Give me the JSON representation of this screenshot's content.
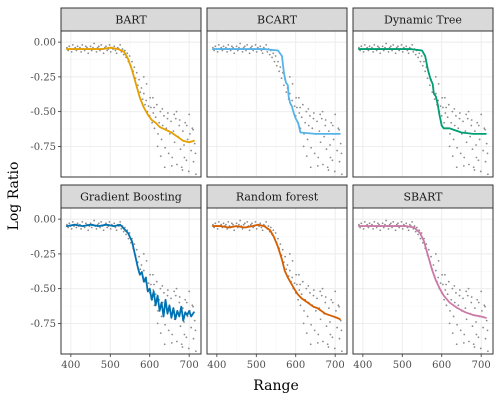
{
  "chart_data": {
    "type": "line",
    "xlabel": "Range",
    "ylabel": "Log Ratio",
    "xlim": [
      375,
      730
    ],
    "ylim": [
      -0.97,
      0.08
    ],
    "x_ticks": [
      400,
      500,
      600,
      700
    ],
    "x_tick_labels": [
      "400",
      "500",
      "600",
      "700"
    ],
    "y_ticks": [
      0.0,
      -0.25,
      -0.5,
      -0.75
    ],
    "y_tick_labels": [
      "0.00",
      "-0.25",
      "-0.50",
      "-0.75"
    ],
    "grid": true,
    "layout": "2 rows x 3 columns, faceted",
    "scatter_note": "same grey observed points shown in every panel",
    "panels": [
      {
        "label": "BART",
        "color": "#E69F00",
        "curve": [
          [
            390,
            -0.05
          ],
          [
            420,
            -0.05
          ],
          [
            450,
            -0.05
          ],
          [
            480,
            -0.05
          ],
          [
            500,
            -0.04
          ],
          [
            520,
            -0.05
          ],
          [
            535,
            -0.07
          ],
          [
            545,
            -0.12
          ],
          [
            555,
            -0.2
          ],
          [
            565,
            -0.3
          ],
          [
            575,
            -0.4
          ],
          [
            585,
            -0.47
          ],
          [
            595,
            -0.52
          ],
          [
            605,
            -0.56
          ],
          [
            615,
            -0.58
          ],
          [
            625,
            -0.61
          ],
          [
            640,
            -0.63
          ],
          [
            655,
            -0.65
          ],
          [
            670,
            -0.68
          ],
          [
            685,
            -0.71
          ],
          [
            700,
            -0.72
          ],
          [
            712,
            -0.71
          ]
        ]
      },
      {
        "label": "BCART",
        "color": "#56B4E9",
        "curve": [
          [
            390,
            -0.05
          ],
          [
            450,
            -0.05
          ],
          [
            520,
            -0.05
          ],
          [
            555,
            -0.06
          ],
          [
            565,
            -0.1
          ],
          [
            570,
            -0.22
          ],
          [
            575,
            -0.29
          ],
          [
            580,
            -0.31
          ],
          [
            582,
            -0.39
          ],
          [
            586,
            -0.44
          ],
          [
            590,
            -0.46
          ],
          [
            595,
            -0.51
          ],
          [
            600,
            -0.55
          ],
          [
            606,
            -0.58
          ],
          [
            612,
            -0.65
          ],
          [
            650,
            -0.66
          ],
          [
            712,
            -0.66
          ]
        ]
      },
      {
        "label": "Dynamic Tree",
        "color": "#009E73",
        "curve": [
          [
            390,
            -0.05
          ],
          [
            450,
            -0.05
          ],
          [
            520,
            -0.05
          ],
          [
            550,
            -0.06
          ],
          [
            558,
            -0.1
          ],
          [
            565,
            -0.2
          ],
          [
            572,
            -0.27
          ],
          [
            577,
            -0.3
          ],
          [
            580,
            -0.37
          ],
          [
            585,
            -0.39
          ],
          [
            590,
            -0.45
          ],
          [
            594,
            -0.52
          ],
          [
            600,
            -0.6
          ],
          [
            605,
            -0.62
          ],
          [
            620,
            -0.62
          ],
          [
            630,
            -0.63
          ],
          [
            650,
            -0.65
          ],
          [
            680,
            -0.66
          ],
          [
            712,
            -0.66
          ]
        ]
      },
      {
        "label": "Gradient Boosting",
        "color": "#0072B2",
        "curve": [
          [
            390,
            -0.05
          ],
          [
            410,
            -0.04
          ],
          [
            430,
            -0.05
          ],
          [
            450,
            -0.04
          ],
          [
            470,
            -0.05
          ],
          [
            490,
            -0.04
          ],
          [
            510,
            -0.05
          ],
          [
            525,
            -0.04
          ],
          [
            535,
            -0.07
          ],
          [
            545,
            -0.1
          ],
          [
            555,
            -0.16
          ],
          [
            563,
            -0.26
          ],
          [
            570,
            -0.35
          ],
          [
            575,
            -0.4
          ],
          [
            580,
            -0.38
          ],
          [
            585,
            -0.45
          ],
          [
            590,
            -0.42
          ],
          [
            595,
            -0.52
          ],
          [
            600,
            -0.5
          ],
          [
            605,
            -0.58
          ],
          [
            610,
            -0.52
          ],
          [
            615,
            -0.62
          ],
          [
            620,
            -0.55
          ],
          [
            625,
            -0.66
          ],
          [
            630,
            -0.6
          ],
          [
            635,
            -0.7
          ],
          [
            640,
            -0.58
          ],
          [
            645,
            -0.68
          ],
          [
            650,
            -0.62
          ],
          [
            655,
            -0.71
          ],
          [
            660,
            -0.64
          ],
          [
            665,
            -0.72
          ],
          [
            670,
            -0.66
          ],
          [
            675,
            -0.7
          ],
          [
            680,
            -0.63
          ],
          [
            685,
            -0.73
          ],
          [
            690,
            -0.67
          ],
          [
            695,
            -0.69
          ],
          [
            700,
            -0.66
          ],
          [
            705,
            -0.7
          ],
          [
            712,
            -0.67
          ]
        ]
      },
      {
        "label": "Random forest",
        "color": "#D55E00",
        "curve": [
          [
            390,
            -0.05
          ],
          [
            410,
            -0.05
          ],
          [
            430,
            -0.06
          ],
          [
            450,
            -0.05
          ],
          [
            470,
            -0.06
          ],
          [
            490,
            -0.05
          ],
          [
            505,
            -0.04
          ],
          [
            520,
            -0.05
          ],
          [
            535,
            -0.08
          ],
          [
            545,
            -0.13
          ],
          [
            555,
            -0.2
          ],
          [
            565,
            -0.29
          ],
          [
            572,
            -0.37
          ],
          [
            580,
            -0.42
          ],
          [
            588,
            -0.46
          ],
          [
            596,
            -0.5
          ],
          [
            605,
            -0.54
          ],
          [
            615,
            -0.57
          ],
          [
            625,
            -0.59
          ],
          [
            635,
            -0.61
          ],
          [
            645,
            -0.63
          ],
          [
            655,
            -0.64
          ],
          [
            665,
            -0.66
          ],
          [
            675,
            -0.68
          ],
          [
            685,
            -0.69
          ],
          [
            695,
            -0.7
          ],
          [
            705,
            -0.71
          ],
          [
            712,
            -0.72
          ]
        ]
      },
      {
        "label": "SBART",
        "color": "#CC79A7",
        "curve": [
          [
            390,
            -0.05
          ],
          [
            420,
            -0.05
          ],
          [
            450,
            -0.05
          ],
          [
            480,
            -0.05
          ],
          [
            510,
            -0.05
          ],
          [
            530,
            -0.06
          ],
          [
            545,
            -0.1
          ],
          [
            555,
            -0.16
          ],
          [
            565,
            -0.26
          ],
          [
            575,
            -0.36
          ],
          [
            585,
            -0.44
          ],
          [
            595,
            -0.5
          ],
          [
            605,
            -0.55
          ],
          [
            620,
            -0.6
          ],
          [
            640,
            -0.64
          ],
          [
            660,
            -0.67
          ],
          [
            680,
            -0.69
          ],
          [
            700,
            -0.7
          ],
          [
            712,
            -0.71
          ]
        ]
      }
    ],
    "points": [
      [
        390,
        -0.04
      ],
      [
        393,
        -0.06
      ],
      [
        396,
        -0.03
      ],
      [
        399,
        -0.05
      ],
      [
        402,
        -0.07
      ],
      [
        405,
        -0.02
      ],
      [
        408,
        -0.05
      ],
      [
        411,
        -0.04
      ],
      [
        414,
        -0.06
      ],
      [
        417,
        -0.03
      ],
      [
        420,
        -0.05
      ],
      [
        423,
        -0.04
      ],
      [
        426,
        -0.07
      ],
      [
        429,
        -0.02
      ],
      [
        432,
        -0.05
      ],
      [
        435,
        -0.06
      ],
      [
        438,
        -0.03
      ],
      [
        441,
        -0.04
      ],
      [
        444,
        -0.08
      ],
      [
        447,
        -0.05
      ],
      [
        450,
        -0.03
      ],
      [
        453,
        -0.06
      ],
      [
        456,
        -0.04
      ],
      [
        459,
        -0.01
      ],
      [
        462,
        -0.05
      ],
      [
        465,
        -0.07
      ],
      [
        468,
        -0.04
      ],
      [
        471,
        -0.03
      ],
      [
        474,
        -0.06
      ],
      [
        477,
        -0.02
      ],
      [
        480,
        -0.05
      ],
      [
        483,
        -0.08
      ],
      [
        486,
        -0.04
      ],
      [
        489,
        -0.03
      ],
      [
        492,
        -0.06
      ],
      [
        495,
        -0.05
      ],
      [
        498,
        -0.02
      ],
      [
        501,
        -0.07
      ],
      [
        504,
        -0.04
      ],
      [
        507,
        -0.05
      ],
      [
        510,
        -0.03
      ],
      [
        513,
        -0.06
      ],
      [
        516,
        -0.08
      ],
      [
        519,
        -0.04
      ],
      [
        522,
        -0.05
      ],
      [
        525,
        -0.02
      ],
      [
        528,
        -0.07
      ],
      [
        531,
        -0.05
      ],
      [
        534,
        -0.09
      ],
      [
        537,
        -0.06
      ],
      [
        540,
        -0.11
      ],
      [
        543,
        -0.08
      ],
      [
        546,
        -0.14
      ],
      [
        549,
        -0.1
      ],
      [
        552,
        -0.17
      ],
      [
        555,
        -0.14
      ],
      [
        558,
        -0.21
      ],
      [
        561,
        -0.18
      ],
      [
        564,
        -0.26
      ],
      [
        567,
        -0.22
      ],
      [
        570,
        -0.31
      ],
      [
        573,
        -0.27
      ],
      [
        576,
        -0.36
      ],
      [
        579,
        -0.33
      ],
      [
        582,
        -0.41
      ],
      [
        585,
        -0.37
      ],
      [
        588,
        -0.45
      ],
      [
        591,
        -0.42
      ],
      [
        594,
        -0.5
      ],
      [
        597,
        -0.46
      ],
      [
        600,
        -0.53
      ],
      [
        603,
        -0.47
      ],
      [
        606,
        -0.58
      ],
      [
        609,
        -0.51
      ],
      [
        612,
        -0.62
      ],
      [
        615,
        -0.54
      ],
      [
        618,
        -0.45
      ],
      [
        621,
        -0.66
      ],
      [
        624,
        -0.58
      ],
      [
        627,
        -0.5
      ],
      [
        630,
        -0.7
      ],
      [
        633,
        -0.6
      ],
      [
        636,
        -0.53
      ],
      [
        639,
        -0.76
      ],
      [
        642,
        -0.62
      ],
      [
        645,
        -0.55
      ],
      [
        648,
        -0.8
      ],
      [
        651,
        -0.66
      ],
      [
        654,
        -0.57
      ],
      [
        657,
        -0.83
      ],
      [
        660,
        -0.64
      ],
      [
        663,
        -0.72
      ],
      [
        666,
        -0.55
      ],
      [
        669,
        -0.88
      ],
      [
        672,
        -0.68
      ],
      [
        675,
        -0.6
      ],
      [
        678,
        -0.77
      ],
      [
        681,
        -0.9
      ],
      [
        684,
        -0.64
      ],
      [
        687,
        -0.74
      ],
      [
        690,
        -0.58
      ],
      [
        693,
        -0.85
      ],
      [
        696,
        -0.7
      ],
      [
        699,
        -0.93
      ],
      [
        702,
        -0.66
      ],
      [
        705,
        -0.78
      ],
      [
        708,
        -0.62
      ],
      [
        711,
        -0.86
      ],
      [
        714,
        -0.73
      ],
      [
        717,
        -0.95
      ],
      [
        601,
        -0.4
      ],
      [
        611,
        -0.47
      ],
      [
        632,
        -0.48
      ],
      [
        646,
        -0.51
      ],
      [
        662,
        -0.52
      ],
      [
        676,
        -0.56
      ],
      [
        694,
        -0.6
      ],
      [
        710,
        -0.63
      ],
      [
        628,
        -0.82
      ],
      [
        656,
        -0.89
      ],
      [
        688,
        -0.83
      ],
      [
        700,
        -0.52
      ],
      [
        585,
        -0.25
      ],
      [
        592,
        -0.3
      ],
      [
        608,
        -0.4
      ],
      [
        620,
        -0.75
      ],
      [
        638,
        -0.9
      ],
      [
        668,
        -0.5
      ],
      [
        683,
        -0.92
      ],
      [
        716,
        -0.8
      ]
    ]
  }
}
